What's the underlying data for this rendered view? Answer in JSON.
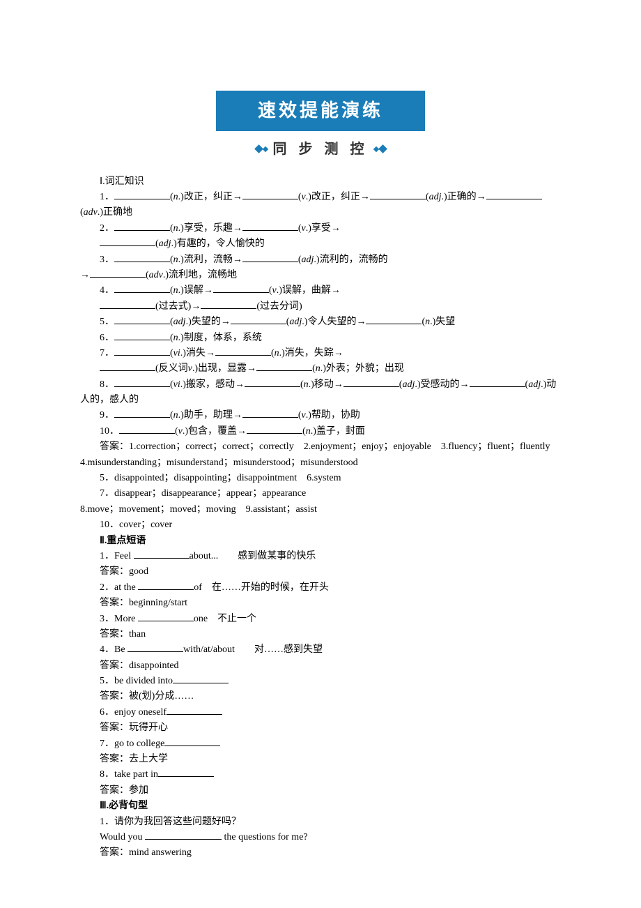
{
  "banner": {
    "title": "速效提能演练",
    "subtitle": "同 步 测 控"
  },
  "section1": {
    "title": "Ⅰ.词汇知识",
    "items": [
      {
        "num": "1．",
        "parts": [
          "(n.)改正，纠正→",
          "(v.)改正，纠正→",
          "(adj.)正确的→",
          "(adv.)正确地"
        ]
      },
      {
        "num": "2．",
        "parts": [
          "(n.)享受，乐趣→",
          "(v.)享受→"
        ],
        "cont": [
          "(adj.)有趣的，令人愉快的"
        ]
      },
      {
        "num": "3．",
        "parts": [
          "(n.)流利，流畅→",
          "(adj.)流利的，流畅的"
        ],
        "tail": "→",
        "cont": [
          "(adv.)流利地，流畅地"
        ]
      },
      {
        "num": "4．",
        "parts": [
          "(n.)误解→",
          "(v.)误解，曲解→"
        ],
        "cont": [
          "(过去式)→",
          "(过去分词)"
        ]
      },
      {
        "num": "5．",
        "parts": [
          "(adj.)失望的→",
          "(adj.)令人失望的→",
          "(n.)失望"
        ]
      },
      {
        "num": "6．",
        "parts": [
          "(n.)制度，体系，系统"
        ]
      },
      {
        "num": "7．",
        "parts": [
          "(vi.)消失→",
          "(n.)消失，失踪→"
        ],
        "cont": [
          "(反义词v.)出现，显露→",
          "(n.)外表；外貌；出现"
        ]
      },
      {
        "num": "8．",
        "parts": [
          "(vi.)搬家，感动→",
          "(n.)移动→",
          "(adj.)受感动的→",
          "(adj.)动人的，感人的"
        ]
      },
      {
        "num": "9．",
        "parts": [
          "(n.)助手，助理→",
          "(v.)帮助，协助"
        ]
      },
      {
        "num": "10．",
        "parts": [
          "(v.)包含，覆盖→",
          "(n.)盖子，封面"
        ]
      }
    ],
    "answers": [
      "答案：1.correction；correct；correct；correctly　2.enjoyment；enjoy；enjoyable　3.fluency；fluent；fluently",
      "4.misunderstanding；misunderstand；misunderstood；misunderstood",
      "5．disappointed；disappointing；disappointment　6.system",
      "7．disappear；disappearance；appear；appearance",
      "8.move；movement；moved；moving　9.assistant；assist",
      "10．cover；cover"
    ]
  },
  "section2": {
    "title": "Ⅱ.重点短语",
    "items": [
      {
        "num": "1．",
        "pre": "Feel ",
        "post": "about...　　感到做某事的快乐",
        "answer": "答案：good"
      },
      {
        "num": "2．",
        "pre": "at the ",
        "post": "of　在……开始的时候，在开头",
        "answer": "答案：beginning/start"
      },
      {
        "num": "3．",
        "pre": "More ",
        "post": "one　不止一个",
        "answer": "答案：than"
      },
      {
        "num": "4．",
        "pre": "Be ",
        "post": "with/at/about　　对……感到失望",
        "answer": "答案：disappointed"
      },
      {
        "num": "5．",
        "pre": "be divided into",
        "post": "",
        "answer": "答案：被(划)分成……"
      },
      {
        "num": "6．",
        "pre": "enjoy oneself",
        "post": "",
        "answer": "答案：玩得开心"
      },
      {
        "num": "7．",
        "pre": "go to college",
        "post": "",
        "answer": "答案：去上大学"
      },
      {
        "num": "8．",
        "pre": "take part in",
        "post": "",
        "answer": "答案：参加"
      }
    ]
  },
  "section3": {
    "title": "Ⅲ.必背句型",
    "items": [
      {
        "num": "1．",
        "text": "请你为我回答这些问题好吗？"
      },
      {
        "pre": "Would you ",
        "post": " the questions for me?"
      },
      {
        "answer": "答案：mind answering"
      }
    ]
  }
}
